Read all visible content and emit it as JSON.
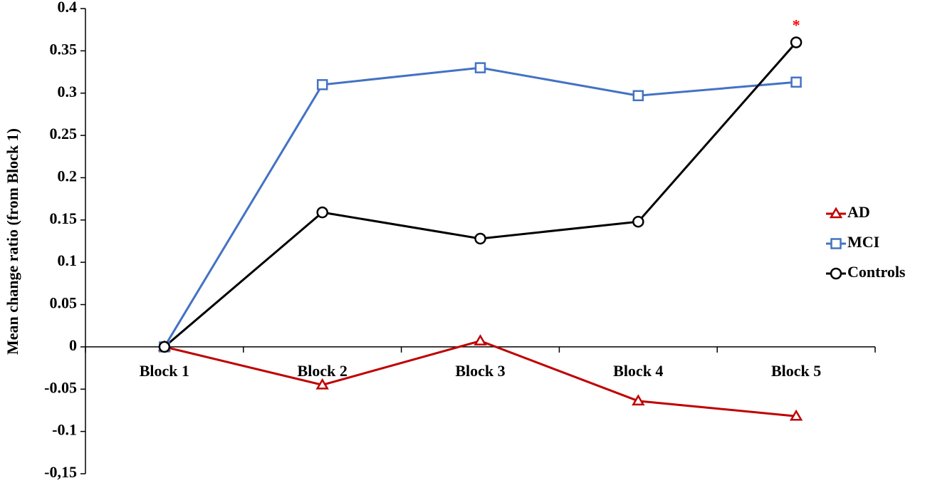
{
  "chart_data": {
    "type": "line",
    "y_label": "Mean change ratio (from Block 1)",
    "categories": [
      "Block 1",
      "Block 2",
      "Block 3",
      "Block 4",
      "Block 5"
    ],
    "series": [
      {
        "name": "AD",
        "color": "#c00000",
        "marker": "triangle",
        "values": [
          0,
          -0.045,
          0.007,
          -0.064,
          -0.082
        ]
      },
      {
        "name": "MCI",
        "color": "#4472c4",
        "marker": "square",
        "values": [
          0,
          0.31,
          0.33,
          0.297,
          0.313
        ]
      },
      {
        "name": "Controls",
        "color": "#000000",
        "marker": "circle",
        "values": [
          0,
          0.159,
          0.128,
          0.148,
          0.36
        ]
      }
    ],
    "ylim": [
      -0.15,
      0.4
    ],
    "yticks": [
      {
        "value": -0.15,
        "label": "-0,15"
      },
      -0.1,
      -0.05,
      0,
      0.05,
      0.1,
      0.15,
      0.2,
      0.25,
      0.3,
      0.35,
      0.4
    ],
    "annotation": {
      "text": "*",
      "color": "#ff0000"
    },
    "legend": "right"
  }
}
